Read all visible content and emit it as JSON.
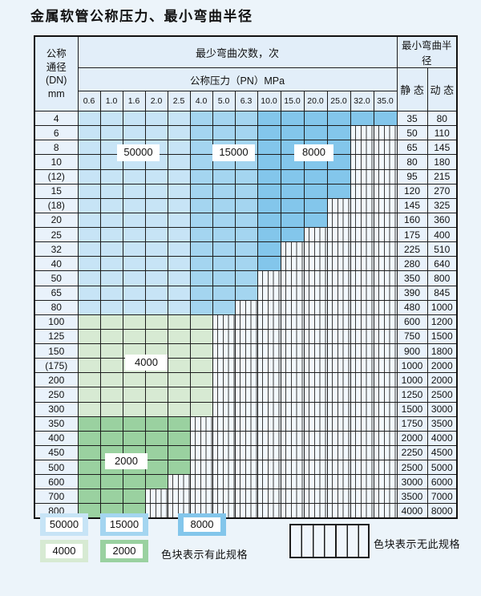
{
  "title": "金属软管公称压力、最小弯曲半径",
  "colors": {
    "b1": "#c7e4f6",
    "b2": "#a4d5f0",
    "b3": "#83c6eb",
    "g1": "#d7ead3",
    "g2": "#9ad1a0"
  },
  "table": {
    "header": {
      "dn_lines": [
        "公称",
        "通径",
        "(DN)",
        "mm"
      ],
      "bend_cycles": "最少弯曲次数，次",
      "pressure": "公称压力（PN）MPa",
      "pressures": [
        "0.6",
        "1.0",
        "1.6",
        "2.0",
        "2.5",
        "4.0",
        "5.0",
        "6.3",
        "10.0",
        "15.0",
        "20.0",
        "25.0",
        "32.0",
        "35.0"
      ],
      "min_radius": "最小弯曲半径",
      "static": "静 态",
      "dynamic": "动 态"
    },
    "rows": [
      {
        "dn": "4",
        "colored": 14,
        "band": "blue",
        "static": "35",
        "dynamic": "80"
      },
      {
        "dn": "6",
        "colored": 12,
        "band": "blue",
        "static": "50",
        "dynamic": "110"
      },
      {
        "dn": "8",
        "colored": 12,
        "band": "blue",
        "static": "65",
        "dynamic": "145"
      },
      {
        "dn": "10",
        "colored": 12,
        "band": "blue",
        "static": "80",
        "dynamic": "180"
      },
      {
        "dn": "(12)",
        "colored": 12,
        "band": "blue",
        "static": "95",
        "dynamic": "215"
      },
      {
        "dn": "15",
        "colored": 12,
        "band": "blue",
        "static": "120",
        "dynamic": "270"
      },
      {
        "dn": "(18)",
        "colored": 11,
        "band": "blue",
        "static": "145",
        "dynamic": "325"
      },
      {
        "dn": "20",
        "colored": 11,
        "band": "blue",
        "static": "160",
        "dynamic": "360"
      },
      {
        "dn": "25",
        "colored": 10,
        "band": "blue",
        "static": "175",
        "dynamic": "400"
      },
      {
        "dn": "32",
        "colored": 9,
        "band": "blue",
        "static": "225",
        "dynamic": "510"
      },
      {
        "dn": "40",
        "colored": 9,
        "band": "blue",
        "static": "280",
        "dynamic": "640"
      },
      {
        "dn": "50",
        "colored": 8,
        "band": "blue",
        "static": "350",
        "dynamic": "800"
      },
      {
        "dn": "65",
        "colored": 8,
        "band": "blue",
        "static": "390",
        "dynamic": "845"
      },
      {
        "dn": "80",
        "colored": 7,
        "band": "blue",
        "static": "480",
        "dynamic": "1000"
      },
      {
        "dn": "100",
        "colored": 6,
        "band": "g1",
        "static": "600",
        "dynamic": "1200"
      },
      {
        "dn": "125",
        "colored": 6,
        "band": "g1",
        "static": "750",
        "dynamic": "1500"
      },
      {
        "dn": "150",
        "colored": 6,
        "band": "g1",
        "static": "900",
        "dynamic": "1800"
      },
      {
        "dn": "(175)",
        "colored": 6,
        "band": "g1",
        "static": "1000",
        "dynamic": "2000"
      },
      {
        "dn": "200",
        "colored": 6,
        "band": "g1",
        "static": "1000",
        "dynamic": "2000"
      },
      {
        "dn": "250",
        "colored": 6,
        "band": "g1",
        "static": "1250",
        "dynamic": "2500"
      },
      {
        "dn": "300",
        "colored": 6,
        "band": "g1",
        "static": "1500",
        "dynamic": "3000"
      },
      {
        "dn": "350",
        "colored": 5,
        "band": "g2",
        "static": "1750",
        "dynamic": "3500"
      },
      {
        "dn": "400",
        "colored": 5,
        "band": "g2",
        "static": "2000",
        "dynamic": "4000"
      },
      {
        "dn": "450",
        "colored": 5,
        "band": "g2",
        "static": "2250",
        "dynamic": "4500"
      },
      {
        "dn": "500",
        "colored": 5,
        "band": "g2",
        "static": "2500",
        "dynamic": "5000"
      },
      {
        "dn": "600",
        "colored": 4,
        "band": "g2",
        "static": "3000",
        "dynamic": "6000"
      },
      {
        "dn": "700",
        "colored": 3,
        "band": "g2",
        "static": "3500",
        "dynamic": "7000"
      },
      {
        "dn": "800",
        "colored": 3,
        "band": "g2",
        "static": "4000",
        "dynamic": "8000"
      }
    ]
  },
  "overlays": [
    {
      "text": "50000"
    },
    {
      "text": "15000"
    },
    {
      "text": "8000"
    },
    {
      "text": "4000"
    },
    {
      "text": "2000"
    }
  ],
  "legend": {
    "items": [
      {
        "label": "50000",
        "color": "b1"
      },
      {
        "label": "15000",
        "color": "b2"
      },
      {
        "label": "8000",
        "color": "b3"
      },
      {
        "label": "4000",
        "color": "g1"
      },
      {
        "label": "2000",
        "color": "g2"
      }
    ],
    "note_has": "色块表示有此规格",
    "note_none": "色块表示无此规格"
  }
}
